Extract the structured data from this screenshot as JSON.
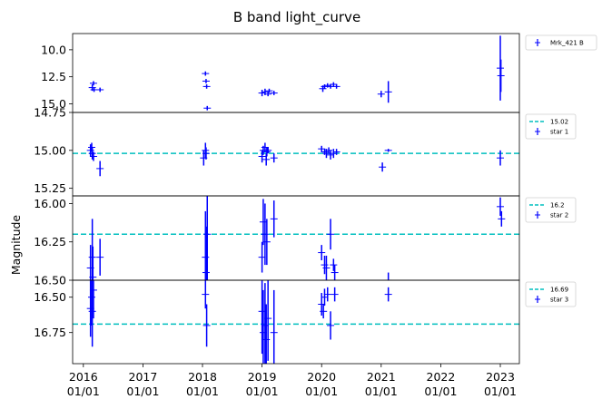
{
  "chart_data": {
    "type": "scatter",
    "title": "B band light_curve",
    "ylabel": "Magnitude",
    "x_ticks": [
      {
        "value": 2016.0,
        "line1": "2016",
        "line2": "01/01"
      },
      {
        "value": 2017.0,
        "line1": "2017",
        "line2": "01/01"
      },
      {
        "value": 2018.0,
        "line1": "2018",
        "line2": "01/01"
      },
      {
        "value": 2019.0,
        "line1": "2019",
        "line2": "01/01"
      },
      {
        "value": 2020.0,
        "line1": "2020",
        "line2": "01/01"
      },
      {
        "value": 2021.0,
        "line1": "2021",
        "line2": "01/01"
      },
      {
        "value": 2022.0,
        "line1": "2022",
        "line2": "01/01"
      },
      {
        "value": 2023.0,
        "line1": "2023",
        "line2": "01/01"
      }
    ],
    "xlim": [
      2015.82,
      2023.32
    ],
    "colors": {
      "points": "#0000ff",
      "reference": "#00bfbf"
    },
    "panels": [
      {
        "id": "mrk421",
        "ylim": [
          8.5,
          15.8
        ],
        "inverted": true,
        "y_ticks": [
          {
            "value": 10.0,
            "label": "10.0"
          },
          {
            "value": 12.5,
            "label": "12.5"
          },
          {
            "value": 15.0,
            "label": "15.0"
          }
        ],
        "reference": null,
        "legend": {
          "series_label": "Mrk_421 B",
          "reference_label": ""
        },
        "points": [
          {
            "x": 2016.15,
            "y": 13.5,
            "err": 0.3
          },
          {
            "x": 2016.17,
            "y": 13.1,
            "err": 0.2
          },
          {
            "x": 2016.18,
            "y": 13.7,
            "err": 0.2
          },
          {
            "x": 2016.28,
            "y": 13.7,
            "err": 0.2
          },
          {
            "x": 2018.05,
            "y": 12.2,
            "err": 0.2
          },
          {
            "x": 2018.06,
            "y": 12.9,
            "err": 0.2
          },
          {
            "x": 2018.07,
            "y": 13.4,
            "err": 0.2
          },
          {
            "x": 2018.08,
            "y": 15.4,
            "err": 0.2
          },
          {
            "x": 2019.0,
            "y": 14.0,
            "err": 0.3
          },
          {
            "x": 2019.05,
            "y": 13.9,
            "err": 0.3
          },
          {
            "x": 2019.1,
            "y": 14.1,
            "err": 0.2
          },
          {
            "x": 2019.12,
            "y": 13.8,
            "err": 0.2
          },
          {
            "x": 2019.2,
            "y": 14.0,
            "err": 0.2
          },
          {
            "x": 2020.02,
            "y": 13.6,
            "err": 0.3
          },
          {
            "x": 2020.05,
            "y": 13.4,
            "err": 0.2
          },
          {
            "x": 2020.1,
            "y": 13.3,
            "err": 0.2
          },
          {
            "x": 2020.15,
            "y": 13.4,
            "err": 0.2
          },
          {
            "x": 2020.2,
            "y": 13.2,
            "err": 0.2
          },
          {
            "x": 2020.25,
            "y": 13.4,
            "err": 0.2
          },
          {
            "x": 2021.0,
            "y": 14.1,
            "err": 0.3
          },
          {
            "x": 2021.12,
            "y": 13.9,
            "err": 1.0
          },
          {
            "x": 2023.0,
            "y": 11.7,
            "err": 3.0
          },
          {
            "x": 2023.01,
            "y": 12.4,
            "err": 1.5
          }
        ]
      },
      {
        "id": "star1",
        "ylim": [
          14.75,
          15.3
        ],
        "inverted": true,
        "y_ticks": [
          {
            "value": 14.75,
            "label": "14.75"
          },
          {
            "value": 15.0,
            "label": "15.00"
          },
          {
            "value": 15.25,
            "label": "15.25"
          }
        ],
        "reference": 15.02,
        "legend": {
          "series_label": "star 1",
          "reference_label": "15.02"
        },
        "points": [
          {
            "x": 2016.12,
            "y": 15.0,
            "err": 0.04
          },
          {
            "x": 2016.14,
            "y": 14.98,
            "err": 0.03
          },
          {
            "x": 2016.15,
            "y": 15.02,
            "err": 0.04
          },
          {
            "x": 2016.17,
            "y": 15.04,
            "err": 0.03
          },
          {
            "x": 2016.28,
            "y": 15.12,
            "err": 0.05
          },
          {
            "x": 2018.02,
            "y": 15.05,
            "err": 0.05
          },
          {
            "x": 2018.05,
            "y": 15.0,
            "err": 0.05
          },
          {
            "x": 2018.06,
            "y": 15.02,
            "err": 0.04
          },
          {
            "x": 2019.0,
            "y": 15.04,
            "err": 0.04
          },
          {
            "x": 2019.02,
            "y": 15.0,
            "err": 0.03
          },
          {
            "x": 2019.05,
            "y": 14.98,
            "err": 0.03
          },
          {
            "x": 2019.07,
            "y": 15.06,
            "err": 0.04
          },
          {
            "x": 2019.08,
            "y": 15.01,
            "err": 0.03
          },
          {
            "x": 2019.1,
            "y": 15.0,
            "err": 0.02
          },
          {
            "x": 2019.2,
            "y": 15.05,
            "err": 0.03
          },
          {
            "x": 2020.0,
            "y": 14.99,
            "err": 0.02
          },
          {
            "x": 2020.05,
            "y": 15.01,
            "err": 0.02
          },
          {
            "x": 2020.08,
            "y": 15.02,
            "err": 0.03
          },
          {
            "x": 2020.12,
            "y": 15.0,
            "err": 0.02
          },
          {
            "x": 2020.15,
            "y": 15.03,
            "err": 0.03
          },
          {
            "x": 2020.2,
            "y": 15.02,
            "err": 0.03
          },
          {
            "x": 2020.25,
            "y": 15.01,
            "err": 0.02
          },
          {
            "x": 2021.02,
            "y": 15.11,
            "err": 0.03
          },
          {
            "x": 2021.12,
            "y": 15.0,
            "err": 0.01
          },
          {
            "x": 2023.0,
            "y": 15.05,
            "err": 0.05
          }
        ]
      },
      {
        "id": "star2",
        "ylim": [
          15.95,
          16.5
        ],
        "inverted": true,
        "y_ticks": [
          {
            "value": 16.0,
            "label": "16.00"
          },
          {
            "value": 16.25,
            "label": "16.25"
          },
          {
            "value": 16.5,
            "label": "16.50"
          }
        ],
        "reference": 16.2,
        "legend": {
          "series_label": "star 2",
          "reference_label": "16.2"
        },
        "points": [
          {
            "x": 2016.12,
            "y": 16.42,
            "err": 0.15
          },
          {
            "x": 2016.15,
            "y": 16.35,
            "err": 0.25
          },
          {
            "x": 2016.16,
            "y": 16.48,
            "err": 0.2
          },
          {
            "x": 2016.28,
            "y": 16.35,
            "err": 0.12
          },
          {
            "x": 2018.05,
            "y": 16.35,
            "err": 0.3
          },
          {
            "x": 2018.06,
            "y": 16.45,
            "err": 0.3
          },
          {
            "x": 2018.08,
            "y": 16.2,
            "err": 0.3
          },
          {
            "x": 2019.0,
            "y": 16.35,
            "err": 0.1
          },
          {
            "x": 2019.02,
            "y": 16.12,
            "err": 0.15
          },
          {
            "x": 2019.05,
            "y": 16.2,
            "err": 0.2
          },
          {
            "x": 2019.08,
            "y": 16.25,
            "err": 0.15
          },
          {
            "x": 2019.2,
            "y": 16.1,
            "err": 0.12
          },
          {
            "x": 2020.0,
            "y": 16.32,
            "err": 0.05
          },
          {
            "x": 2020.05,
            "y": 16.4,
            "err": 0.06
          },
          {
            "x": 2020.08,
            "y": 16.42,
            "err": 0.08
          },
          {
            "x": 2020.15,
            "y": 16.2,
            "err": 0.1
          },
          {
            "x": 2020.2,
            "y": 16.4,
            "err": 0.04
          },
          {
            "x": 2020.22,
            "y": 16.45,
            "err": 0.05
          },
          {
            "x": 2021.0,
            "y": 16.55,
            "err": 0.05
          },
          {
            "x": 2021.12,
            "y": 16.5,
            "err": 0.05
          },
          {
            "x": 2023.0,
            "y": 16.02,
            "err": 0.06
          },
          {
            "x": 2023.02,
            "y": 16.1,
            "err": 0.05
          }
        ]
      },
      {
        "id": "star3",
        "ylim": [
          16.38,
          16.97
        ],
        "inverted": true,
        "y_ticks": [
          {
            "value": 16.5,
            "label": "16.50"
          },
          {
            "value": 16.75,
            "label": "16.75"
          }
        ],
        "reference": 16.69,
        "legend": {
          "series_label": "star 3",
          "reference_label": "16.69"
        },
        "points": [
          {
            "x": 2016.12,
            "y": 16.58,
            "err": 0.2
          },
          {
            "x": 2016.14,
            "y": 16.5,
            "err": 0.2
          },
          {
            "x": 2016.15,
            "y": 16.6,
            "err": 0.25
          },
          {
            "x": 2016.17,
            "y": 16.45,
            "err": 0.2
          },
          {
            "x": 2018.05,
            "y": 16.48,
            "err": 0.1
          },
          {
            "x": 2018.07,
            "y": 16.7,
            "err": 0.15
          },
          {
            "x": 2019.0,
            "y": 16.6,
            "err": 0.3
          },
          {
            "x": 2019.02,
            "y": 16.75,
            "err": 0.3
          },
          {
            "x": 2019.05,
            "y": 16.7,
            "err": 0.3
          },
          {
            "x": 2019.07,
            "y": 16.8,
            "err": 0.25
          },
          {
            "x": 2019.1,
            "y": 16.65,
            "err": 0.3
          },
          {
            "x": 2019.2,
            "y": 16.75,
            "err": 0.3
          },
          {
            "x": 2020.0,
            "y": 16.55,
            "err": 0.08
          },
          {
            "x": 2020.03,
            "y": 16.6,
            "err": 0.05
          },
          {
            "x": 2020.05,
            "y": 16.5,
            "err": 0.06
          },
          {
            "x": 2020.1,
            "y": 16.48,
            "err": 0.05
          },
          {
            "x": 2020.15,
            "y": 16.7,
            "err": 0.1
          },
          {
            "x": 2020.22,
            "y": 16.48,
            "err": 0.05
          },
          {
            "x": 2021.12,
            "y": 16.48,
            "err": 0.05
          }
        ]
      }
    ]
  }
}
